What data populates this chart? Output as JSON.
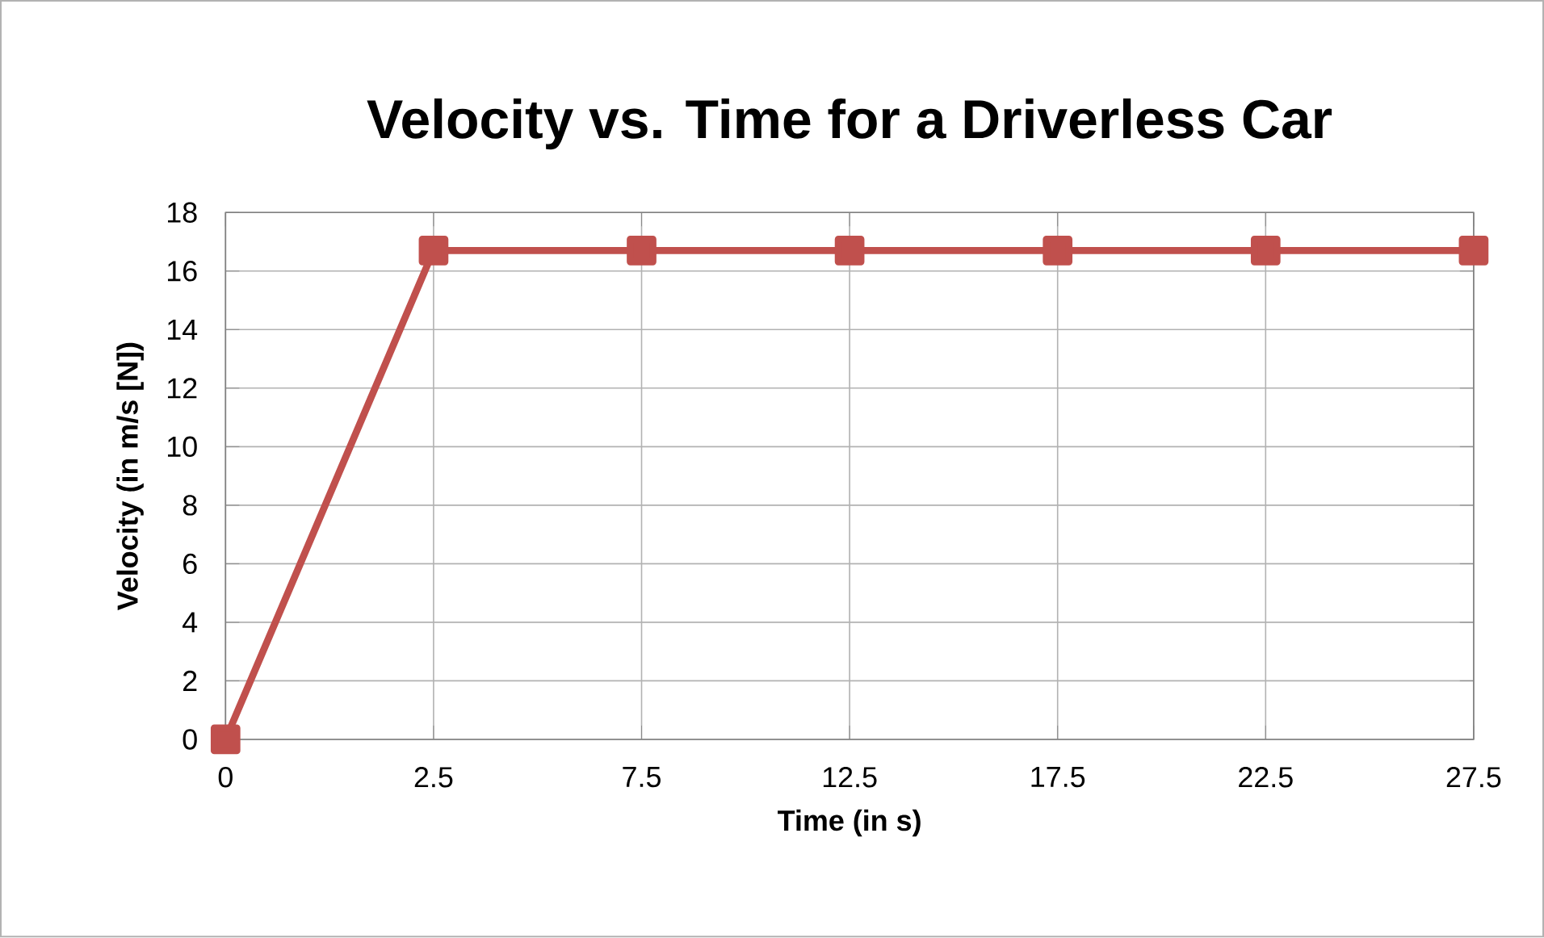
{
  "chart_data": {
    "type": "line",
    "title": "Velocity vs. Time for a Driverless Car",
    "xlabel": "Time (in s)",
    "ylabel": "Velocity (in m/s [N])",
    "categories": [
      "0",
      "2.5",
      "7.5",
      "12.5",
      "17.5",
      "22.5",
      "27.5"
    ],
    "series": [
      {
        "color": "#c0504d",
        "values": [
          0,
          16.7,
          16.7,
          16.7,
          16.7,
          16.7,
          16.7
        ]
      }
    ],
    "ylim": [
      0,
      18
    ],
    "yticks": [
      0,
      2,
      4,
      6,
      8,
      10,
      12,
      14,
      16,
      18
    ],
    "grid": true,
    "legend": false,
    "marker": "square",
    "line_style": "solid"
  }
}
